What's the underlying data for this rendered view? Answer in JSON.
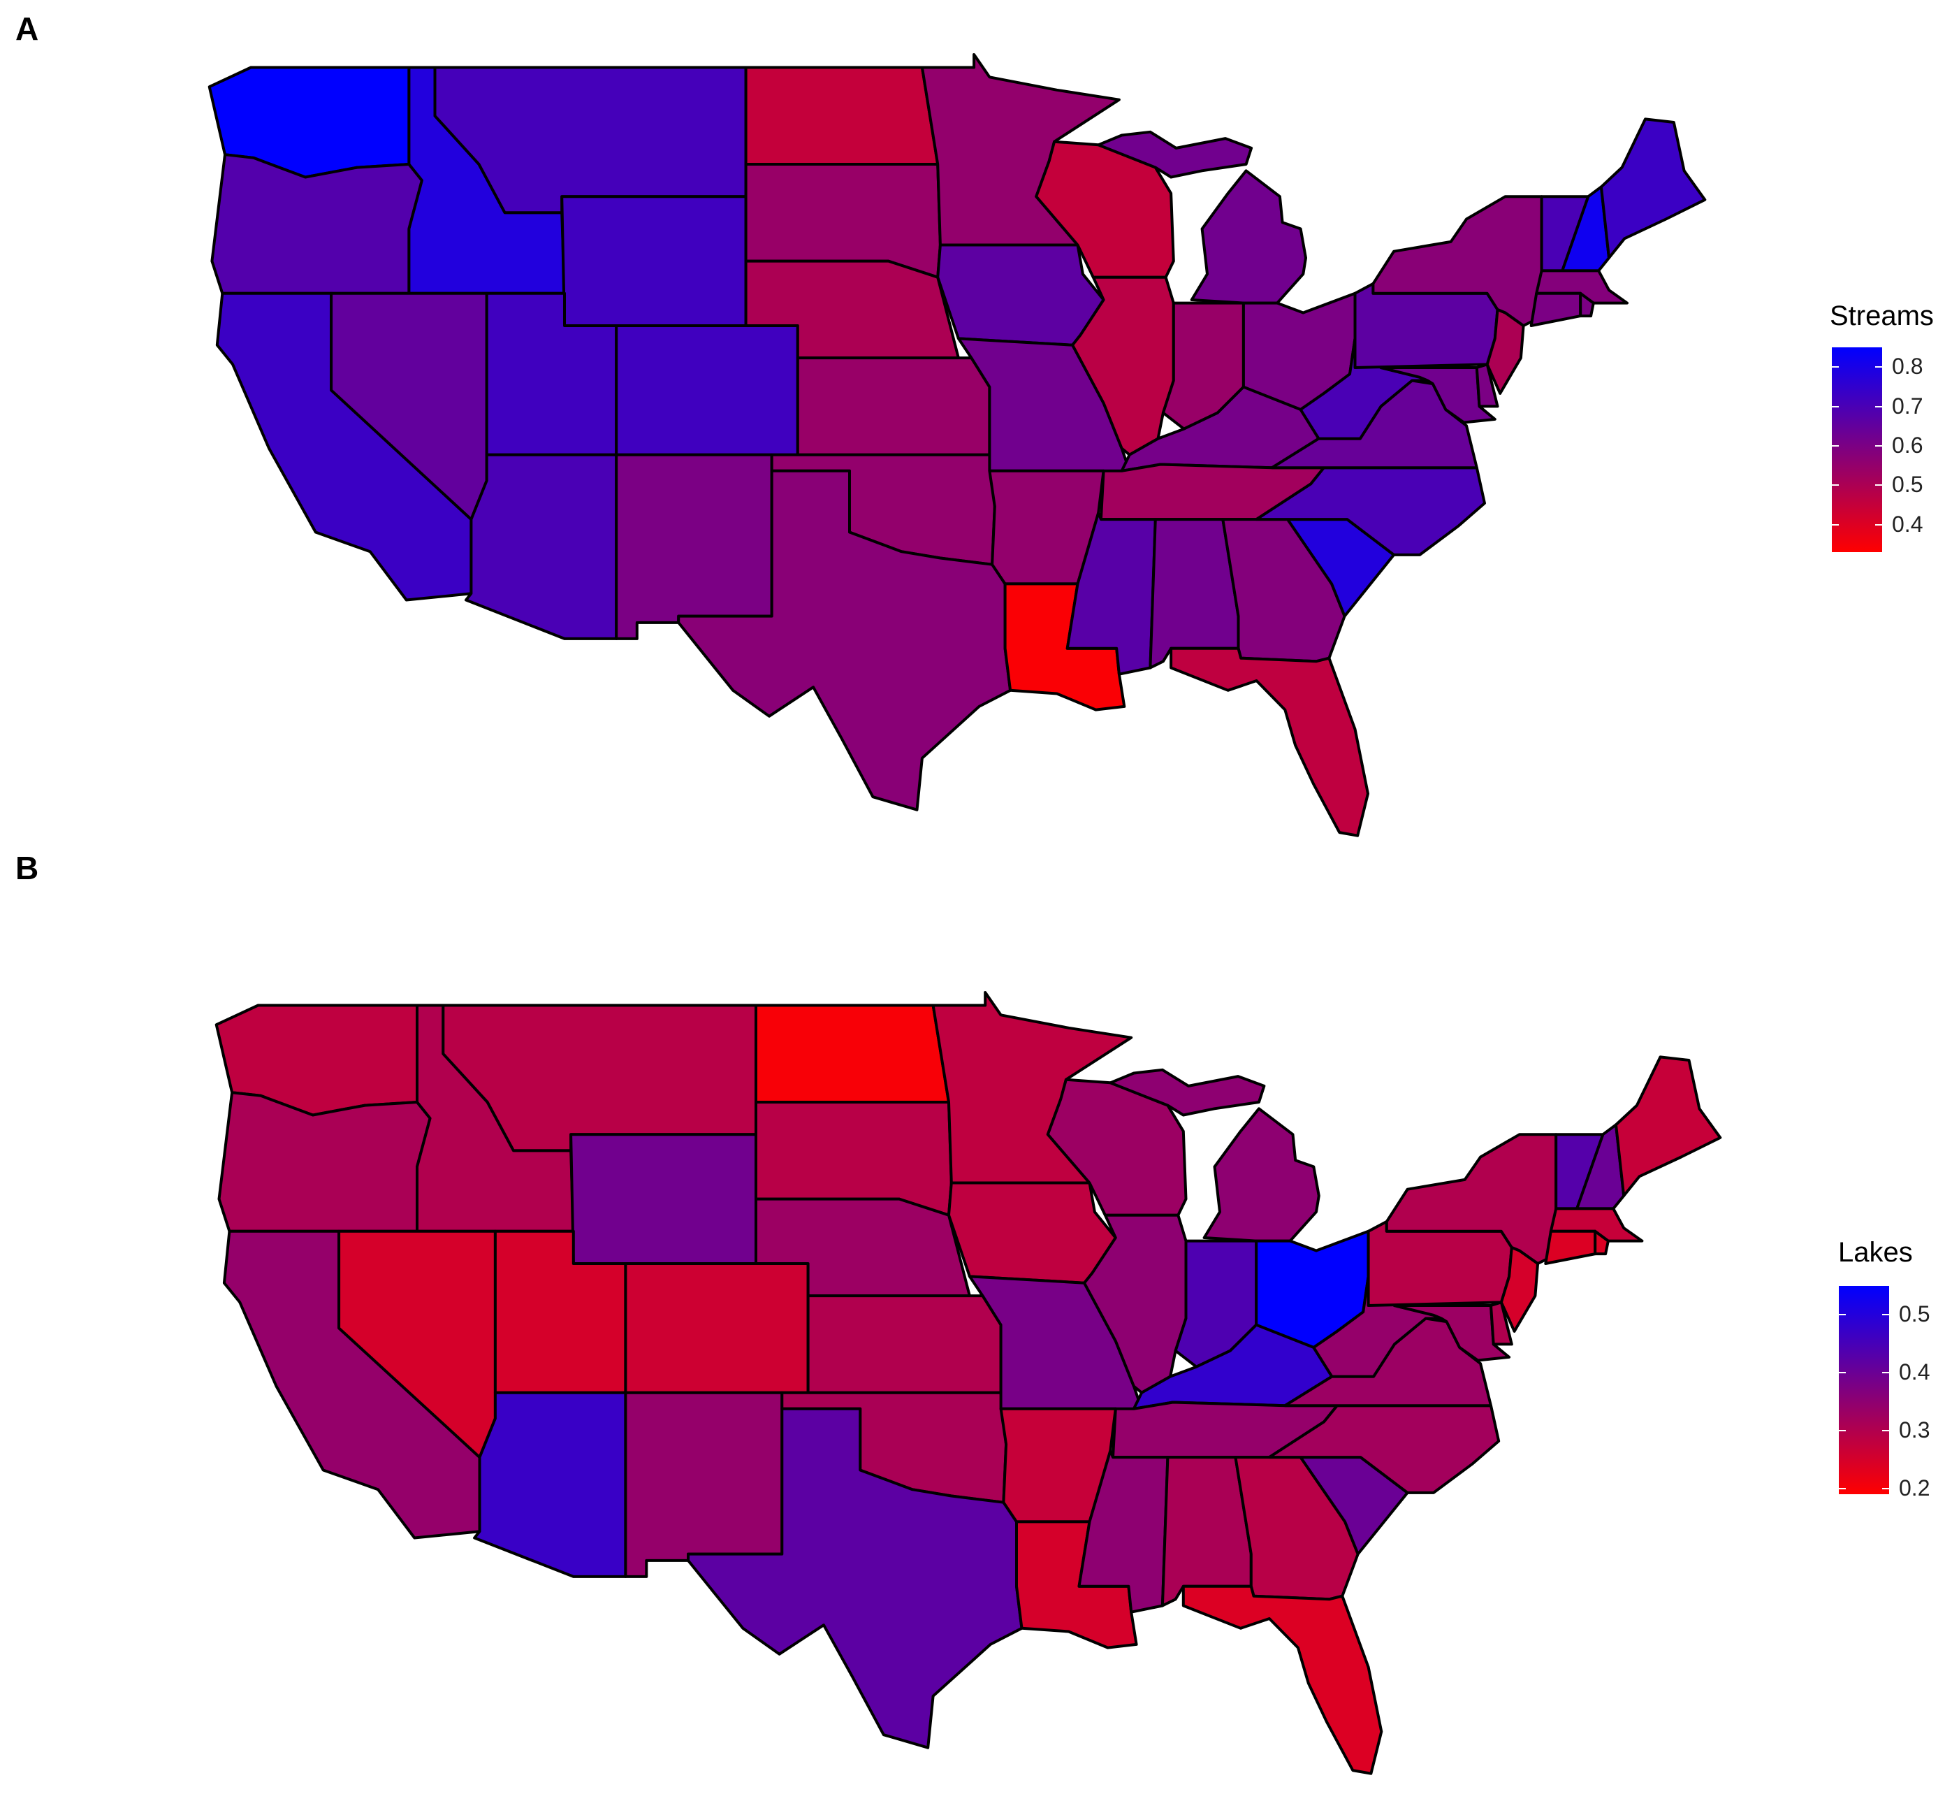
{
  "panels": [
    {
      "letter": "A",
      "legend": {
        "title": "Streams",
        "ticks": [
          "0.8",
          "0.7",
          "0.6",
          "0.5",
          "0.4"
        ],
        "range": [
          0.33,
          0.85
        ],
        "tick_values": [
          0.8,
          0.7,
          0.6,
          0.5,
          0.4
        ],
        "color_low": "#ff0000",
        "color_high": "#0000ff"
      },
      "values": {
        "WA": 0.85,
        "OR": 0.68,
        "CA": 0.73,
        "ID": 0.78,
        "NV": 0.65,
        "MT": 0.71,
        "WY": 0.72,
        "UT": 0.72,
        "AZ": 0.7,
        "CO": 0.72,
        "NM": 0.6,
        "ND": 0.45,
        "SD": 0.54,
        "NE": 0.5,
        "KS": 0.54,
        "OK": 0.55,
        "TX": 0.57,
        "MN": 0.55,
        "IA": 0.66,
        "MO": 0.62,
        "AR": 0.55,
        "LA": 0.34,
        "WI": 0.45,
        "IL": 0.47,
        "MI": 0.62,
        "IN": 0.54,
        "OH": 0.6,
        "KY": 0.61,
        "TN": 0.52,
        "MS": 0.67,
        "AL": 0.62,
        "GA": 0.58,
        "FL": 0.46,
        "SC": 0.78,
        "NC": 0.7,
        "VA": 0.64,
        "WV": 0.7,
        "PA": 0.66,
        "NY": 0.57,
        "VT": 0.7,
        "NH": 0.82,
        "ME": 0.73,
        "MA": 0.58,
        "CT": 0.6,
        "RI": 0.6,
        "NJ": 0.5,
        "DE": 0.6,
        "MD": 0.62
      }
    },
    {
      "letter": "B",
      "legend": {
        "title": "Lakes",
        "ticks": [
          "0.5",
          "0.4",
          "0.3",
          "0.2"
        ],
        "range": [
          0.19,
          0.55
        ],
        "tick_values": [
          0.5,
          0.4,
          0.3,
          0.2
        ],
        "color_low": "#ff0000",
        "color_high": "#0000ff"
      },
      "values": {
        "WA": 0.28,
        "OR": 0.31,
        "CA": 0.34,
        "ID": 0.3,
        "NV": 0.25,
        "MT": 0.29,
        "WY": 0.39,
        "UT": 0.25,
        "AZ": 0.47,
        "CO": 0.26,
        "NM": 0.34,
        "ND": 0.2,
        "SD": 0.29,
        "NE": 0.33,
        "KS": 0.3,
        "OK": 0.31,
        "TX": 0.42,
        "MN": 0.28,
        "IA": 0.28,
        "MO": 0.38,
        "AR": 0.27,
        "LA": 0.25,
        "WI": 0.33,
        "IL": 0.35,
        "MI": 0.35,
        "IN": 0.44,
        "OH": 0.55,
        "KY": 0.48,
        "TN": 0.34,
        "MS": 0.35,
        "AL": 0.31,
        "GA": 0.29,
        "FL": 0.24,
        "SC": 0.4,
        "NC": 0.32,
        "VA": 0.33,
        "WV": 0.34,
        "PA": 0.29,
        "NY": 0.3,
        "VT": 0.43,
        "NH": 0.4,
        "ME": 0.27,
        "MA": 0.27,
        "CT": 0.24,
        "RI": 0.24,
        "NJ": 0.25,
        "DE": 0.3,
        "MD": 0.33
      }
    }
  ]
}
